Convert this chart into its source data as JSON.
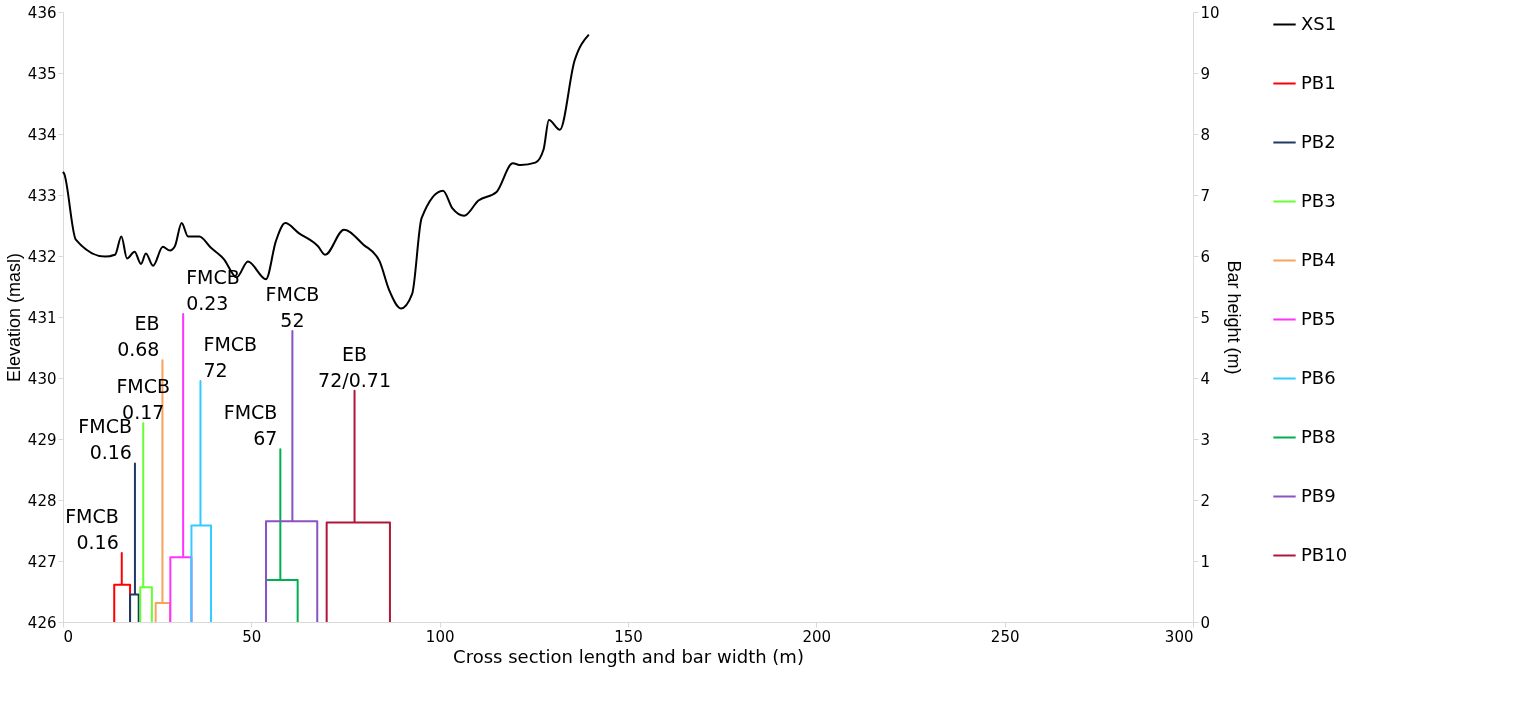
{
  "chart_data": {
    "type": "line",
    "xlabel": "Cross section length and bar width (m)",
    "ylabel": "Elevation (masl)",
    "y2label": "Bar height (m)",
    "xlim": [
      0,
      300
    ],
    "xticks": [
      0,
      50,
      100,
      150,
      200,
      250,
      300
    ],
    "ylim": [
      426,
      436
    ],
    "yticks": [
      426,
      427,
      428,
      429,
      430,
      431,
      432,
      433,
      434,
      435,
      436
    ],
    "y2lim": [
      0,
      10
    ],
    "y2ticks": [
      0,
      1,
      2,
      3,
      4,
      5,
      6,
      7,
      8,
      9,
      10
    ],
    "legend": "right",
    "grid": false,
    "series": [
      {
        "name": "XS1",
        "color": "#000000",
        "x": [
          0,
          0.3,
          3.4,
          11.2,
          13.8,
          15.5,
          17.0,
          19.0,
          20.7,
          22.0,
          23.9,
          26.5,
          28.4,
          29.7,
          31.5,
          33.2,
          36.2,
          39.2,
          42.7,
          46.1,
          49.1,
          53.9,
          56.5,
          59.0,
          62.5,
          67.7,
          69.6,
          74.6,
          79.7,
          84.0,
          86.6,
          89.7,
          92.7,
          95.2,
          100.9,
          103.4,
          106.5,
          110.3,
          115.1,
          119.4,
          121.5,
          125.4,
          127.6,
          129.0,
          131.9,
          135.8,
          139.6
        ],
        "values": [
          433.38,
          433.35,
          432.27,
          431.99,
          432.02,
          432.32,
          431.96,
          432.07,
          431.87,
          432.04,
          431.84,
          432.15,
          432.09,
          432.16,
          432.54,
          432.32,
          432.32,
          432.14,
          431.95,
          431.65,
          431.91,
          431.62,
          432.24,
          432.54,
          432.38,
          432.16,
          432.02,
          432.43,
          432.19,
          431.92,
          431.44,
          431.14,
          431.38,
          432.62,
          433.07,
          432.78,
          432.66,
          432.91,
          433.05,
          433.52,
          433.49,
          433.53,
          433.75,
          434.23,
          434.07,
          435.2,
          435.63
        ]
      },
      {
        "name": "PB1",
        "color": "#ff0000",
        "axis": "y2",
        "x": [
          13.6,
          13.6,
          15.6,
          15.6,
          15.6,
          17.8,
          17.8
        ],
        "values": [
          0,
          0.61,
          0.61,
          1.13,
          0.61,
          0.61,
          0
        ]
      },
      {
        "name": "PB2",
        "color": "#203864",
        "axis": "y2",
        "x": [
          17.8,
          17.8,
          19.1,
          19.1,
          19.1,
          20.1,
          20.1
        ],
        "values": [
          0,
          0.45,
          0.45,
          2.6,
          0.45,
          0.45,
          0
        ]
      },
      {
        "name": "PB3",
        "color": "#66ff33",
        "axis": "y2",
        "x": [
          20.5,
          20.5,
          21.3,
          21.3,
          21.3,
          23.6,
          23.6
        ],
        "values": [
          0,
          0.57,
          0.57,
          3.26,
          0.57,
          0.57,
          0
        ]
      },
      {
        "name": "PB4",
        "color": "#f7a35c",
        "axis": "y2",
        "x": [
          24.6,
          24.6,
          26.4,
          26.4,
          26.4,
          28.4,
          28.4
        ],
        "values": [
          0,
          0.31,
          0.31,
          4.29,
          0.31,
          0.31,
          0
        ]
      },
      {
        "name": "PB5",
        "color": "#ff33ff",
        "axis": "y2",
        "x": [
          28.5,
          28.5,
          31.9,
          31.9,
          31.9,
          34.1,
          34.1
        ],
        "values": [
          0,
          1.06,
          1.06,
          5.05,
          1.06,
          1.06,
          0
        ]
      },
      {
        "name": "PB6",
        "color": "#33ccff",
        "axis": "y2",
        "x": [
          34.1,
          34.1,
          36.5,
          36.5,
          36.5,
          39.3,
          39.3
        ],
        "values": [
          0,
          1.58,
          1.58,
          3.95,
          1.58,
          1.58,
          0
        ]
      },
      {
        "name": "PB8",
        "color": "#00b050",
        "axis": "y2",
        "x": [
          53.9,
          53.9,
          57.7,
          57.7,
          57.7,
          62.3,
          62.3
        ],
        "values": [
          0,
          0.69,
          0.69,
          2.83,
          0.69,
          0.69,
          0
        ]
      },
      {
        "name": "PB9",
        "color": "#8a52c3",
        "axis": "y2",
        "x": [
          53.9,
          53.9,
          60.9,
          60.9,
          60.9,
          67.5,
          67.5
        ],
        "values": [
          0,
          1.65,
          1.65,
          4.77,
          1.65,
          1.65,
          0
        ]
      },
      {
        "name": "PB10",
        "color": "#b0173a",
        "axis": "y2",
        "x": [
          70.0,
          70.0,
          77.4,
          77.4,
          77.4,
          86.8,
          86.8
        ],
        "values": [
          0,
          1.63,
          1.63,
          3.79,
          1.63,
          1.63,
          0
        ]
      }
    ],
    "annotations": [
      "FMCB\n0.16",
      "FMCB\n0.16",
      "FMCB\n0.17",
      "EB\n0.68",
      "FMCB\n0.23",
      "FMCB\n72",
      "FMCB\n67",
      "FMCB\n52",
      "EB\n72/0.71"
    ]
  }
}
